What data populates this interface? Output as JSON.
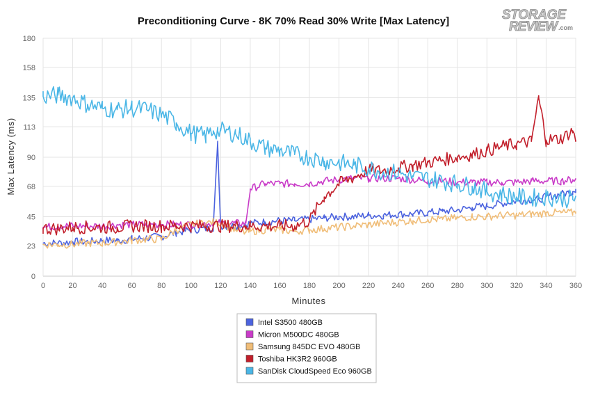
{
  "logo": {
    "line1": "STORAGE",
    "line2": "REVIEW",
    "suffix": ".com"
  },
  "chart_data": {
    "type": "line",
    "title": "Preconditioning Curve - 8K 70% Read 30% Write [Max Latency]",
    "xlabel": "Minutes",
    "ylabel": "Max Latency (ms)",
    "xlim": [
      0,
      360
    ],
    "ylim": [
      0,
      180
    ],
    "x_ticks": [
      "0",
      "20",
      "40",
      "60",
      "80",
      "100",
      "120",
      "140",
      "160",
      "180",
      "200",
      "220",
      "240",
      "260",
      "280",
      "300",
      "320",
      "340",
      "360"
    ],
    "y_ticks": [
      "0",
      "23",
      "45",
      "68",
      "90",
      "113",
      "135",
      "158",
      "180"
    ],
    "grid": true,
    "legend_position": "bottom",
    "x": [
      0,
      10,
      20,
      30,
      40,
      50,
      60,
      70,
      80,
      90,
      100,
      110,
      115,
      118,
      120,
      130,
      137,
      140,
      150,
      160,
      170,
      180,
      190,
      200,
      210,
      220,
      230,
      240,
      250,
      260,
      270,
      280,
      290,
      300,
      310,
      320,
      330,
      335,
      340,
      350,
      358,
      360
    ],
    "series": [
      {
        "name": "Intel S3500 480GB",
        "color": "#4c63df",
        "values": [
          25,
          25,
          26,
          26,
          27,
          27,
          28,
          29,
          30,
          33,
          35,
          36,
          37,
          100,
          38,
          38,
          39,
          40,
          41,
          42,
          42,
          43,
          44,
          45,
          45,
          46,
          46,
          47,
          47,
          48,
          49,
          50,
          52,
          53,
          55,
          57,
          58,
          58,
          60,
          62,
          64,
          66
        ]
      },
      {
        "name": "Micron M500DC 480GB",
        "color": "#c93bc8",
        "values": [
          37,
          38,
          38,
          38,
          38,
          39,
          39,
          39,
          39,
          39,
          39,
          40,
          40,
          40,
          40,
          40,
          40,
          66,
          70,
          70,
          70,
          70,
          72,
          73,
          74,
          74,
          74,
          74,
          73,
          72,
          72,
          71,
          71,
          71,
          71,
          71,
          72,
          72,
          72,
          72,
          73,
          73
        ]
      },
      {
        "name": "Samsung 845DC EVO 480GB",
        "color": "#f0bd78",
        "values": [
          24,
          24,
          24,
          25,
          25,
          26,
          27,
          28,
          28,
          35,
          39,
          40,
          41,
          40,
          40,
          35,
          33,
          34,
          35,
          35,
          34,
          35,
          36,
          37,
          38,
          39,
          40,
          41,
          42,
          43,
          43,
          44,
          45,
          45,
          46,
          46,
          47,
          47,
          48,
          48,
          48,
          49
        ]
      },
      {
        "name": "Toshiba HK3R2 960GB",
        "color": "#c21f2b",
        "values": [
          36,
          36,
          37,
          37,
          37,
          37,
          38,
          38,
          38,
          38,
          38,
          38,
          38,
          38,
          38,
          38,
          38,
          38,
          38,
          38,
          38,
          42,
          60,
          70,
          75,
          80,
          80,
          82,
          84,
          86,
          88,
          90,
          92,
          95,
          98,
          100,
          102,
          135,
          103,
          104,
          110,
          103
        ]
      },
      {
        "name": "SanDisk CloudSpeed Eco 960GB",
        "color": "#4ab6e6",
        "values": [
          136,
          137,
          135,
          130,
          127,
          126,
          127,
          126,
          122,
          116,
          108,
          106,
          110,
          110,
          110,
          108,
          104,
          102,
          97,
          95,
          92,
          90,
          87,
          86,
          84,
          82,
          79,
          78,
          75,
          74,
          72,
          70,
          68,
          64,
          62,
          60,
          59,
          60,
          60,
          59,
          58,
          60
        ]
      }
    ]
  }
}
